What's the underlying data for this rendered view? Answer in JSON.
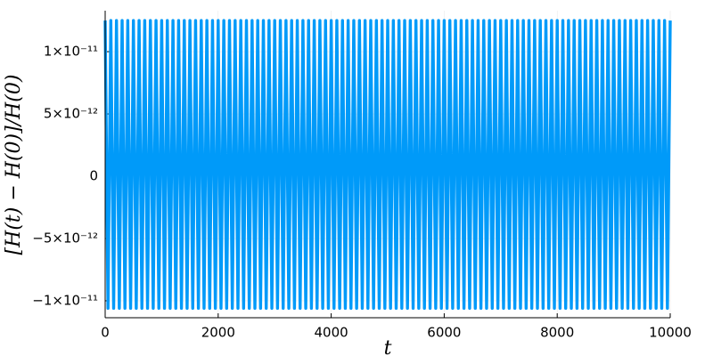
{
  "chart_data": {
    "type": "line",
    "x_label": "t",
    "y_label": "[H(t) − H(0)]/H(0)",
    "color": "#009af9",
    "grid": true,
    "xlim": [
      0,
      10000
    ],
    "xticks": [
      0,
      2000,
      4000,
      6000,
      8000,
      10000
    ],
    "ylim": [
      -1.136e-11,
      1.329e-11
    ],
    "yticks": [
      {
        "value": -1e-11,
        "label": "−1×10⁻¹¹"
      },
      {
        "value": -5e-12,
        "label": "−5×10⁻¹²"
      },
      0,
      {
        "value": 5e-12,
        "label": "5×10⁻¹²"
      },
      {
        "value": 1e-11,
        "label": "1×10⁻¹¹"
      }
    ],
    "x": [
      0,
      50,
      100,
      150,
      200,
      250,
      300,
      350,
      400,
      450,
      500,
      550,
      600,
      650,
      700,
      750,
      800,
      850,
      900,
      950,
      1000,
      1050,
      1100,
      1150,
      1200,
      1250,
      1300,
      1350,
      1400,
      1450,
      1500,
      1550,
      1600,
      1650,
      1700,
      1750,
      1800,
      1850,
      1900,
      1950,
      2000,
      2050,
      2100,
      2150,
      2200,
      2250,
      2300,
      2350,
      2400,
      2450,
      2500,
      2550,
      2600,
      2650,
      2700,
      2750,
      2800,
      2850,
      2900,
      2950,
      3000,
      3050,
      3100,
      3150,
      3200,
      3250,
      3300,
      3350,
      3400,
      3450,
      3500,
      3550,
      3600,
      3650,
      3700,
      3750,
      3800,
      3850,
      3900,
      3950,
      4000,
      4050,
      4100,
      4150,
      4200,
      4250,
      4300,
      4350,
      4400,
      4450,
      4500,
      4550,
      4600,
      4650,
      4700,
      4750,
      4800,
      4850,
      4900,
      4950,
      5000,
      5050,
      5100,
      5150,
      5200,
      5250,
      5300,
      5350,
      5400,
      5450,
      5500,
      5550,
      5600,
      5650,
      5700,
      5750,
      5800,
      5850,
      5900,
      5950,
      6000,
      6050,
      6100,
      6150,
      6200,
      6250,
      6300,
      6350,
      6400,
      6450,
      6500,
      6550,
      6600,
      6650,
      6700,
      6750,
      6800,
      6850,
      6900,
      6950,
      7000,
      7050,
      7100,
      7150,
      7200,
      7250,
      7300,
      7350,
      7400,
      7450,
      7500,
      7550,
      7600,
      7650,
      7700,
      7750,
      7800,
      7850,
      7900,
      7950,
      8000,
      8050,
      8100,
      8150,
      8200,
      8250,
      8300,
      8350,
      8400,
      8450,
      8500,
      8550,
      8600,
      8650,
      8700,
      8750,
      8800,
      8850,
      8900,
      8950,
      9000,
      9050,
      9100,
      9150,
      9200,
      9250,
      9300,
      9350,
      9400,
      9450,
      9500,
      9550,
      9600,
      9650,
      9700,
      9750,
      9800,
      9850,
      9900,
      9950,
      10000
    ],
    "values": [
      1.25e-11,
      -1.06e-11,
      1.25e-11,
      -1.06e-11,
      1.25e-11,
      -1.06e-11,
      1.25e-11,
      -1.06e-11,
      1.25e-11,
      -1.06e-11,
      1.25e-11,
      -1.06e-11,
      1.25e-11,
      -1.06e-11,
      1.25e-11,
      -1.06e-11,
      1.25e-11,
      -1.06e-11,
      1.25e-11,
      -1.06e-11,
      1.25e-11,
      -1.06e-11,
      1.25e-11,
      -1.06e-11,
      1.25e-11,
      -1.06e-11,
      1.25e-11,
      -1.06e-11,
      1.25e-11,
      -1.06e-11,
      1.25e-11,
      -1.06e-11,
      1.25e-11,
      -1.06e-11,
      1.25e-11,
      -1.06e-11,
      1.25e-11,
      -1.06e-11,
      1.25e-11,
      -1.06e-11,
      1.25e-11,
      -1.06e-11,
      1.25e-11,
      -1.06e-11,
      1.25e-11,
      -1.06e-11,
      1.25e-11,
      -1.06e-11,
      1.25e-11,
      -1.06e-11,
      1.25e-11,
      -1.06e-11,
      1.25e-11,
      -1.06e-11,
      1.25e-11,
      -1.06e-11,
      1.25e-11,
      -1.06e-11,
      1.25e-11,
      -1.06e-11,
      1.25e-11,
      -1.06e-11,
      1.25e-11,
      -1.06e-11,
      1.25e-11,
      -1.06e-11,
      1.25e-11,
      -1.06e-11,
      1.25e-11,
      -1.06e-11,
      1.25e-11,
      -1.06e-11,
      1.25e-11,
      -1.06e-11,
      1.25e-11,
      -1.06e-11,
      1.25e-11,
      -1.06e-11,
      1.25e-11,
      -1.06e-11,
      1.25e-11,
      -1.06e-11,
      1.25e-11,
      -1.06e-11,
      1.25e-11,
      -1.06e-11,
      1.25e-11,
      -1.06e-11,
      1.25e-11,
      -1.06e-11,
      1.25e-11,
      -1.06e-11,
      1.25e-11,
      -1.06e-11,
      1.25e-11,
      -1.06e-11,
      1.25e-11,
      -1.06e-11,
      1.25e-11,
      -1.06e-11,
      1.25e-11,
      -1.06e-11,
      1.25e-11,
      -1.06e-11,
      1.25e-11,
      -1.06e-11,
      1.25e-11,
      -1.06e-11,
      1.25e-11,
      -1.06e-11,
      1.25e-11,
      -1.06e-11,
      1.25e-11,
      -1.06e-11,
      1.25e-11,
      -1.06e-11,
      1.25e-11,
      -1.06e-11,
      1.25e-11,
      -1.06e-11,
      1.25e-11,
      -1.06e-11,
      1.25e-11,
      -1.06e-11,
      1.25e-11,
      -1.06e-11,
      1.25e-11,
      -1.06e-11,
      1.25e-11,
      -1.06e-11,
      1.25e-11,
      -1.06e-11,
      1.25e-11,
      -1.06e-11,
      1.25e-11,
      -1.06e-11,
      1.25e-11,
      -1.06e-11,
      1.25e-11,
      -1.06e-11,
      1.25e-11,
      -1.06e-11,
      1.25e-11,
      -1.06e-11,
      1.25e-11,
      -1.06e-11,
      1.25e-11,
      -1.06e-11,
      1.25e-11,
      -1.06e-11,
      1.25e-11,
      -1.06e-11,
      1.25e-11,
      -1.06e-11,
      1.25e-11,
      -1.06e-11,
      1.25e-11,
      -1.06e-11,
      1.25e-11,
      -1.06e-11,
      1.25e-11,
      -1.06e-11,
      1.25e-11,
      -1.06e-11,
      1.25e-11,
      -1.06e-11,
      1.25e-11,
      -1.06e-11,
      1.25e-11,
      -1.06e-11,
      1.25e-11,
      -1.06e-11,
      1.25e-11,
      -1.06e-11,
      1.25e-11,
      -1.06e-11,
      1.25e-11,
      -1.06e-11,
      1.25e-11,
      -1.06e-11,
      1.25e-11,
      -1.06e-11,
      1.25e-11,
      -1.06e-11,
      1.25e-11,
      -1.06e-11,
      1.25e-11,
      -1.06e-11,
      1.25e-11,
      -1.06e-11,
      1.25e-11,
      -1.06e-11,
      1.25e-11,
      -1.06e-11,
      1.25e-11,
      -1.06e-11,
      1.25e-11,
      -1.06e-11,
      1.25e-11,
      -1.06e-11,
      1.25e-11
    ]
  }
}
